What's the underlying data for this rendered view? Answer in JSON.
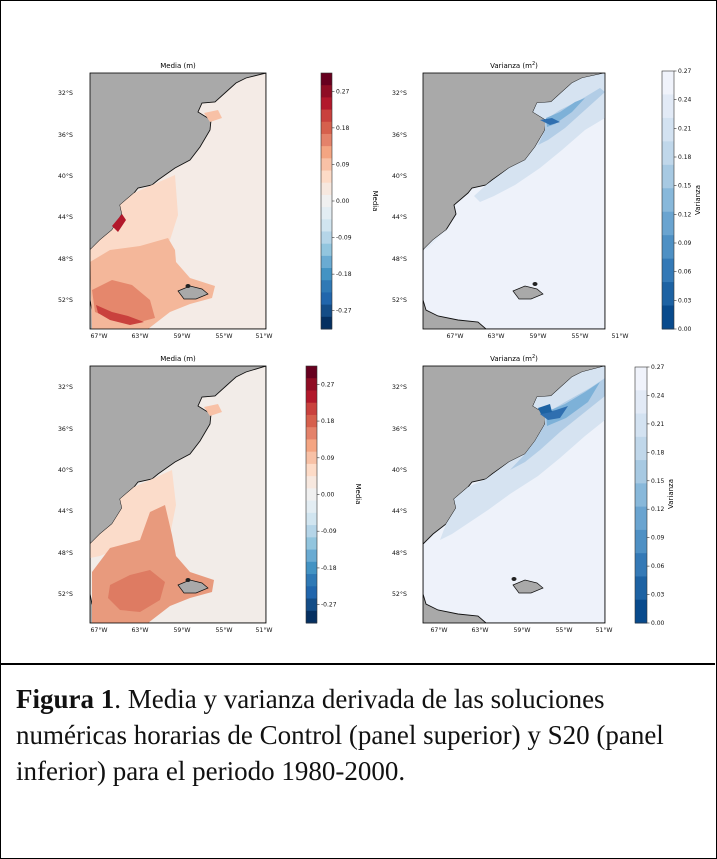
{
  "figure": {
    "panels": [
      {
        "title": "Media (m)",
        "colorbar_label": "Media",
        "colormap": "diverging-red-blue",
        "ticks": [
          "0.27",
          "0.18",
          "0.09",
          "0.00",
          "-0.09",
          "-0.18",
          "-0.27"
        ]
      },
      {
        "title_main": "Varianza (m",
        "title_sup": "2",
        "title_end": ")",
        "colorbar_label": "Varianza",
        "colormap": "sequential-blue",
        "ticks": [
          "0.27",
          "0.24",
          "0.21",
          "0.18",
          "0.15",
          "0.12",
          "0.09",
          "0.06",
          "0.03",
          "0.00"
        ]
      },
      {
        "title": "Media (m)",
        "colorbar_label": "Media",
        "colormap": "diverging-red-blue",
        "ticks": [
          "0.27",
          "0.18",
          "0.09",
          "0.00",
          "-0.09",
          "-0.18",
          "-0.27"
        ]
      },
      {
        "title_main": "Varianza (m",
        "title_sup": "2",
        "title_end": ")",
        "colorbar_label": "Varianza",
        "colormap": "sequential-blue",
        "ticks": [
          "0.27",
          "0.24",
          "0.21",
          "0.18",
          "0.15",
          "0.12",
          "0.09",
          "0.06",
          "0.03",
          "0.00"
        ]
      }
    ],
    "lat_labels": [
      "32°S",
      "36°S",
      "40°S",
      "44°S",
      "48°S",
      "52°S"
    ],
    "lon_labels": [
      "67°W",
      "63°W",
      "59°W",
      "55°W",
      "51°W"
    ],
    "colors": {
      "land": "#a9a9a9",
      "red_scale": [
        "#67001f",
        "#8f0d24",
        "#b2182b",
        "#c9413d",
        "#d6604d",
        "#e4826a",
        "#f4a582",
        "#f8c1a6",
        "#fddbc7",
        "#f7e8df",
        "#f0f0f0",
        "#e3edf3",
        "#d1e5f0",
        "#b5d5e8",
        "#92c5de",
        "#6aabd2",
        "#4393c3",
        "#2f79b5",
        "#2166ac",
        "#144d87",
        "#053061"
      ],
      "blue_scale": [
        "#f0f3fb",
        "#e2eaf6",
        "#d3e2f1",
        "#c0d7ea",
        "#a7c9e2",
        "#88b8da",
        "#6aa4d0",
        "#4e90c4",
        "#3479b6",
        "#1d62a3",
        "#084a8c"
      ]
    }
  },
  "caption": {
    "label": "Figura 1",
    "text": ". Media y varianza derivada de las soluciones numéricas horarias de Control (panel superior) y S20 (panel inferior) para el periodo 1980-2000."
  }
}
